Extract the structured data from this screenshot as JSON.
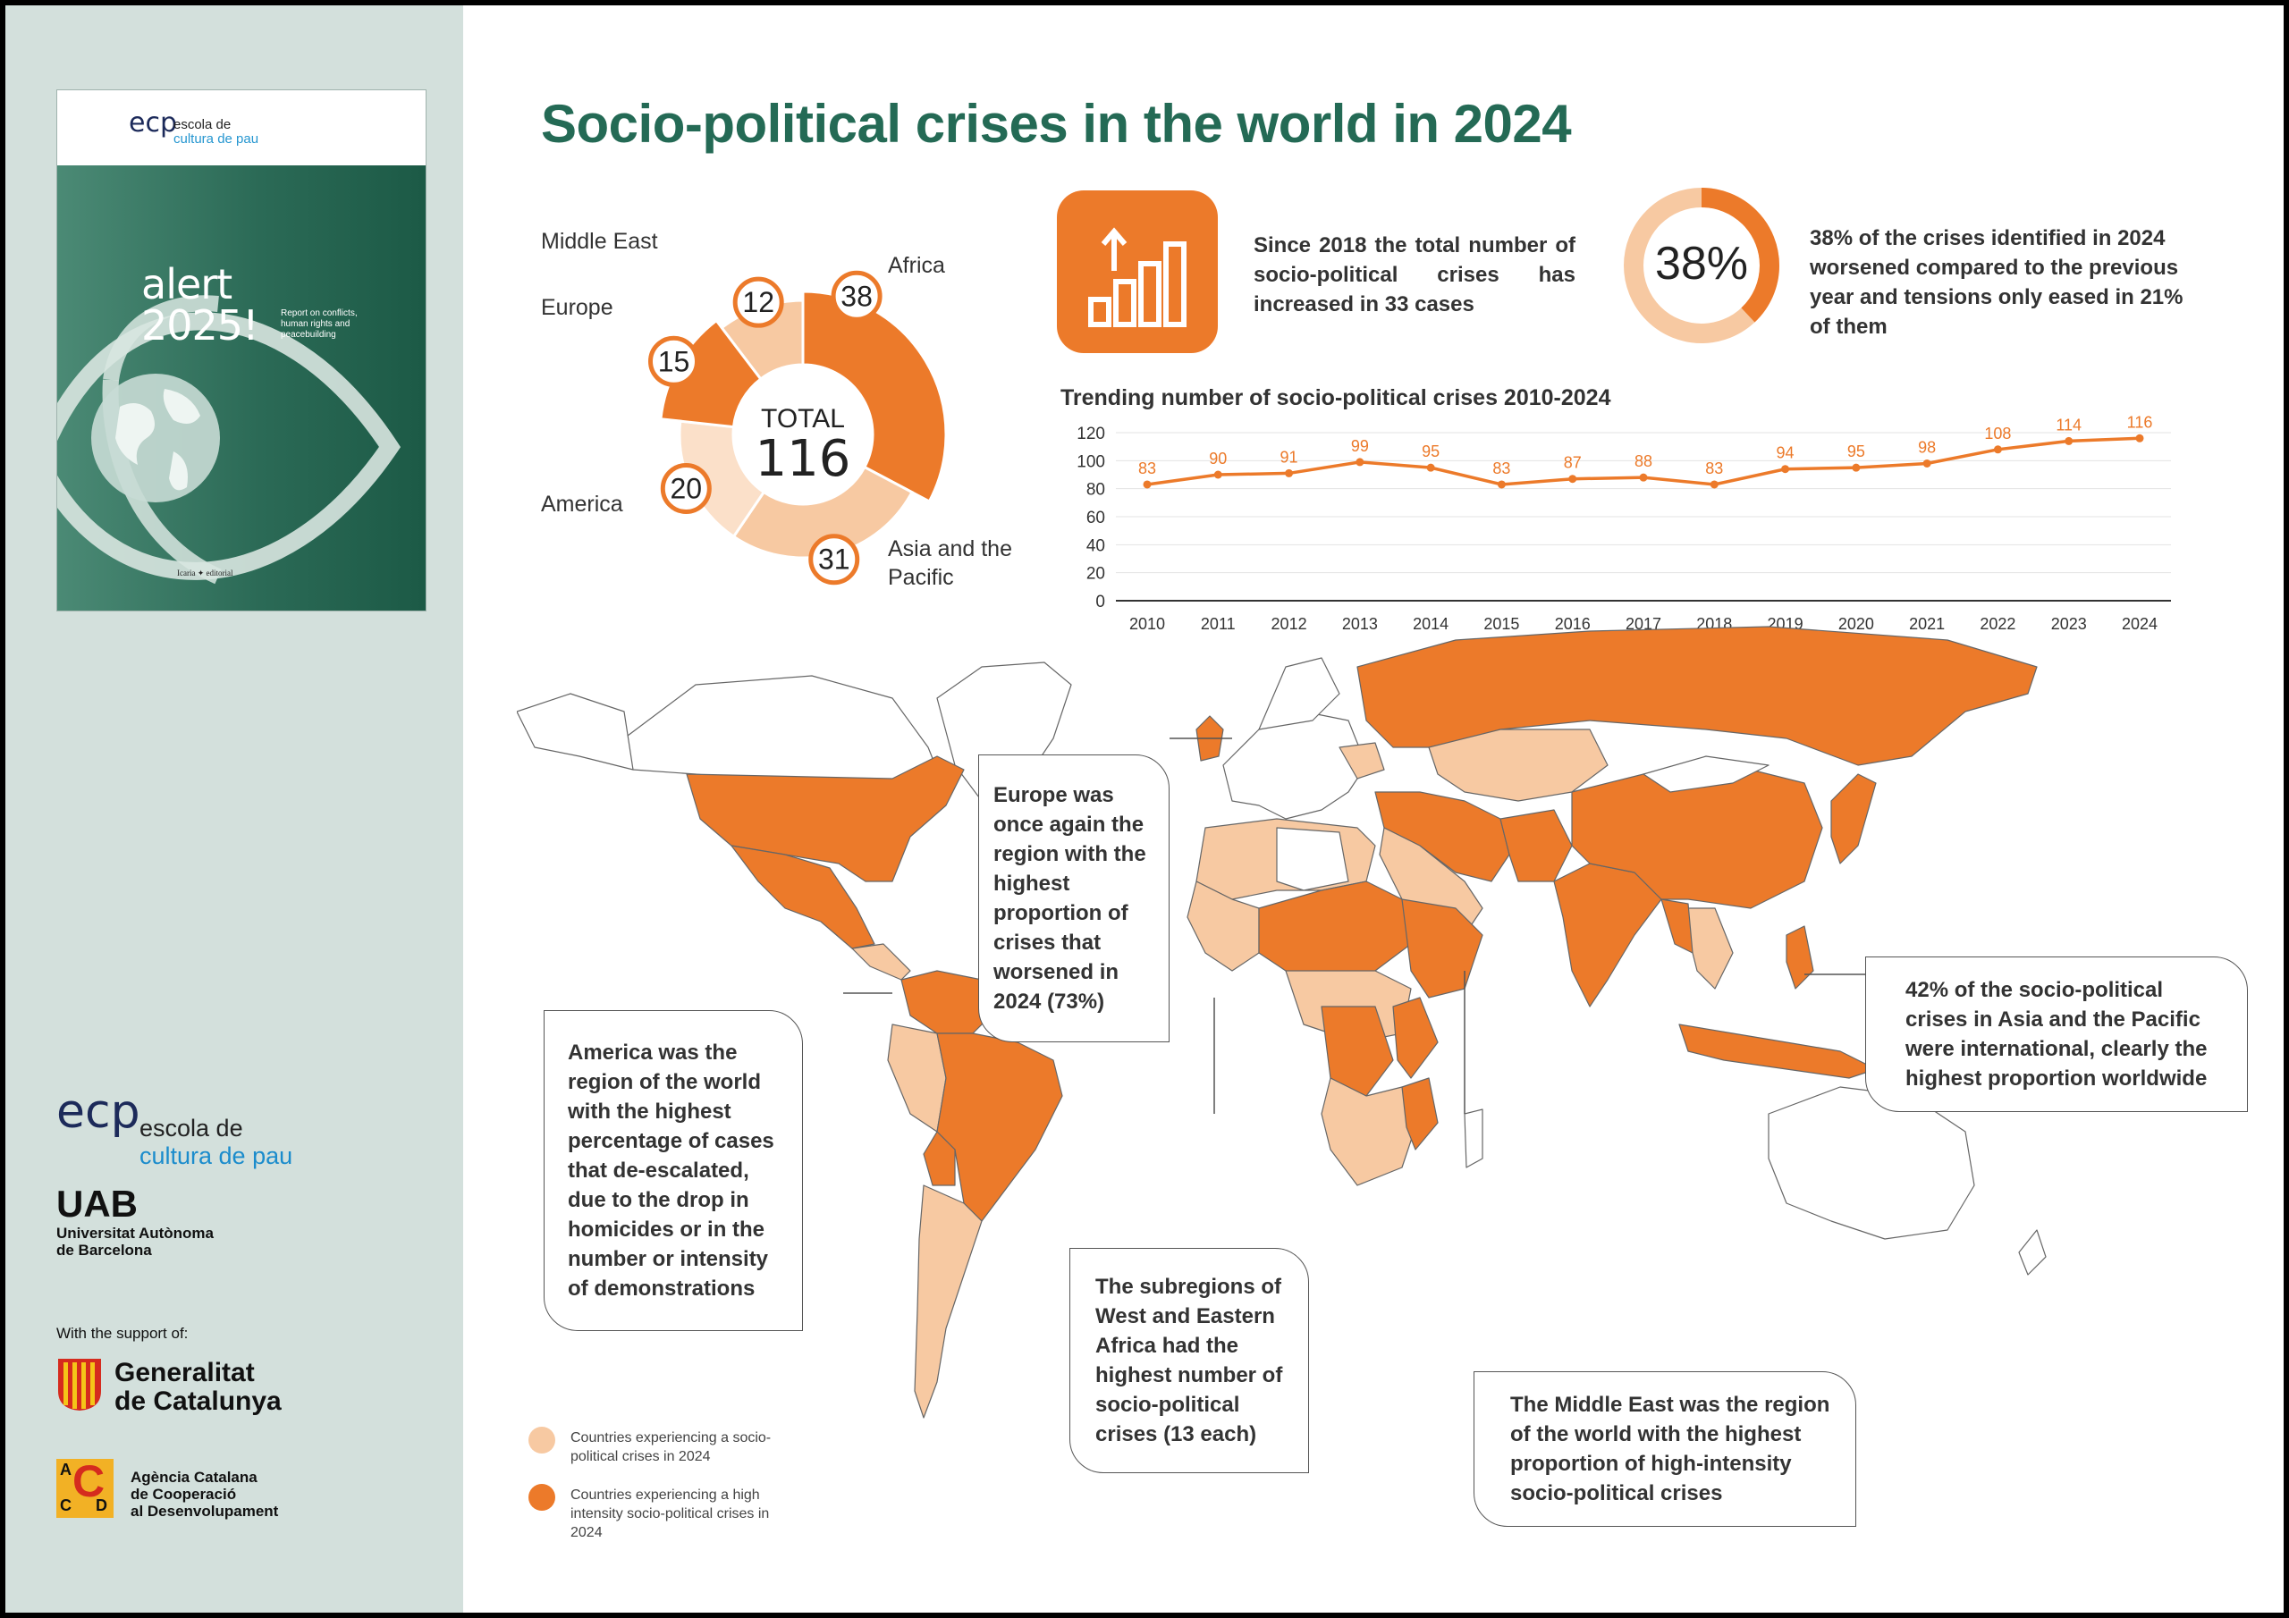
{
  "cover": {
    "logo_line1": "escola de",
    "logo_line2": "cultura de pau",
    "title": "alert\n2025!",
    "subtitle": "Report on conflicts, human rights and peacebuilding",
    "publisher": "Icaria ✦ editorial"
  },
  "sidebar": {
    "ecp_line1": "escola de",
    "ecp_line2": "cultura de pau",
    "uab": "UAB",
    "uab_line1": "Universitat Autònoma",
    "uab_line2": "de Barcelona",
    "support": "With the support of:",
    "generalitat_line1": "Generalitat",
    "generalitat_line2": "de Catalunya",
    "accd_line1": "Agència Catalana",
    "accd_line2": "de Cooperació",
    "accd_line3": "al Desenvolupament",
    "accd_letters": [
      "A",
      "C",
      "C",
      "D"
    ]
  },
  "title": "Socio-political crises in the world in 2024",
  "stat1": "Since 2018 the total number of socio-political crises has increased in 33 cases",
  "stat2_value": "38%",
  "stat2_percent": 38,
  "stat2": "38% of the crises identified in 2024 worsened compared to the previous year and tensions only eased in 21% of them",
  "callouts": {
    "europe": "Europe was once again the region with the highest proportion of crises that worsened in 2024 (73%)",
    "america": "America was the region of the world with the highest percentage of cases that de-escalated, due to the drop in homicides or in the number or intensity of demonstrations",
    "asia": "42% of the socio-political crises in Asia and the Pacific were international, clearly the highest proportion worldwide",
    "west_africa": "The subregions of West and Eastern Africa had the highest number of socio-political crises (13 each)",
    "middle_east": "The Middle East was the region of the world with the highest proportion of high-intensity socio-political crises"
  },
  "legend": {
    "light": "Countries experiencing a socio-political crises in 2024",
    "dark": "Countries experiencing a high intensity socio-political crises in 2024"
  },
  "colors": {
    "green": "#246a55",
    "orange": "#ec7a2a",
    "light_orange": "#f7c9a2",
    "pale_orange": "#fbe0c9"
  },
  "chart_data": [
    {
      "type": "pie",
      "center_label": "TOTAL",
      "total": 116,
      "slices": [
        {
          "label": "Africa",
          "value": 38,
          "color": "#ec7a2a"
        },
        {
          "label": "Asia and the Pacific",
          "value": 31,
          "color": "#f7c9a2"
        },
        {
          "label": "America",
          "value": 20,
          "color": "#fbe0c9"
        },
        {
          "label": "Europe",
          "value": 15,
          "color": "#ec7a2a"
        },
        {
          "label": "Middle East",
          "value": 12,
          "color": "#f7c9a2"
        }
      ]
    },
    {
      "type": "line",
      "title": "Trending number of socio-political crises 2010-2024",
      "x": [
        "2010",
        "2011",
        "2012",
        "2013",
        "2014",
        "2015",
        "2016",
        "2017",
        "2018",
        "2019",
        "2020",
        "2021",
        "2022",
        "2023",
        "2024"
      ],
      "values": [
        83,
        90,
        91,
        99,
        95,
        83,
        87,
        88,
        83,
        94,
        95,
        98,
        108,
        114,
        116
      ],
      "ylim": [
        0,
        120
      ],
      "yticks": [
        0,
        20,
        40,
        60,
        80,
        100,
        120
      ],
      "grid": true
    }
  ]
}
